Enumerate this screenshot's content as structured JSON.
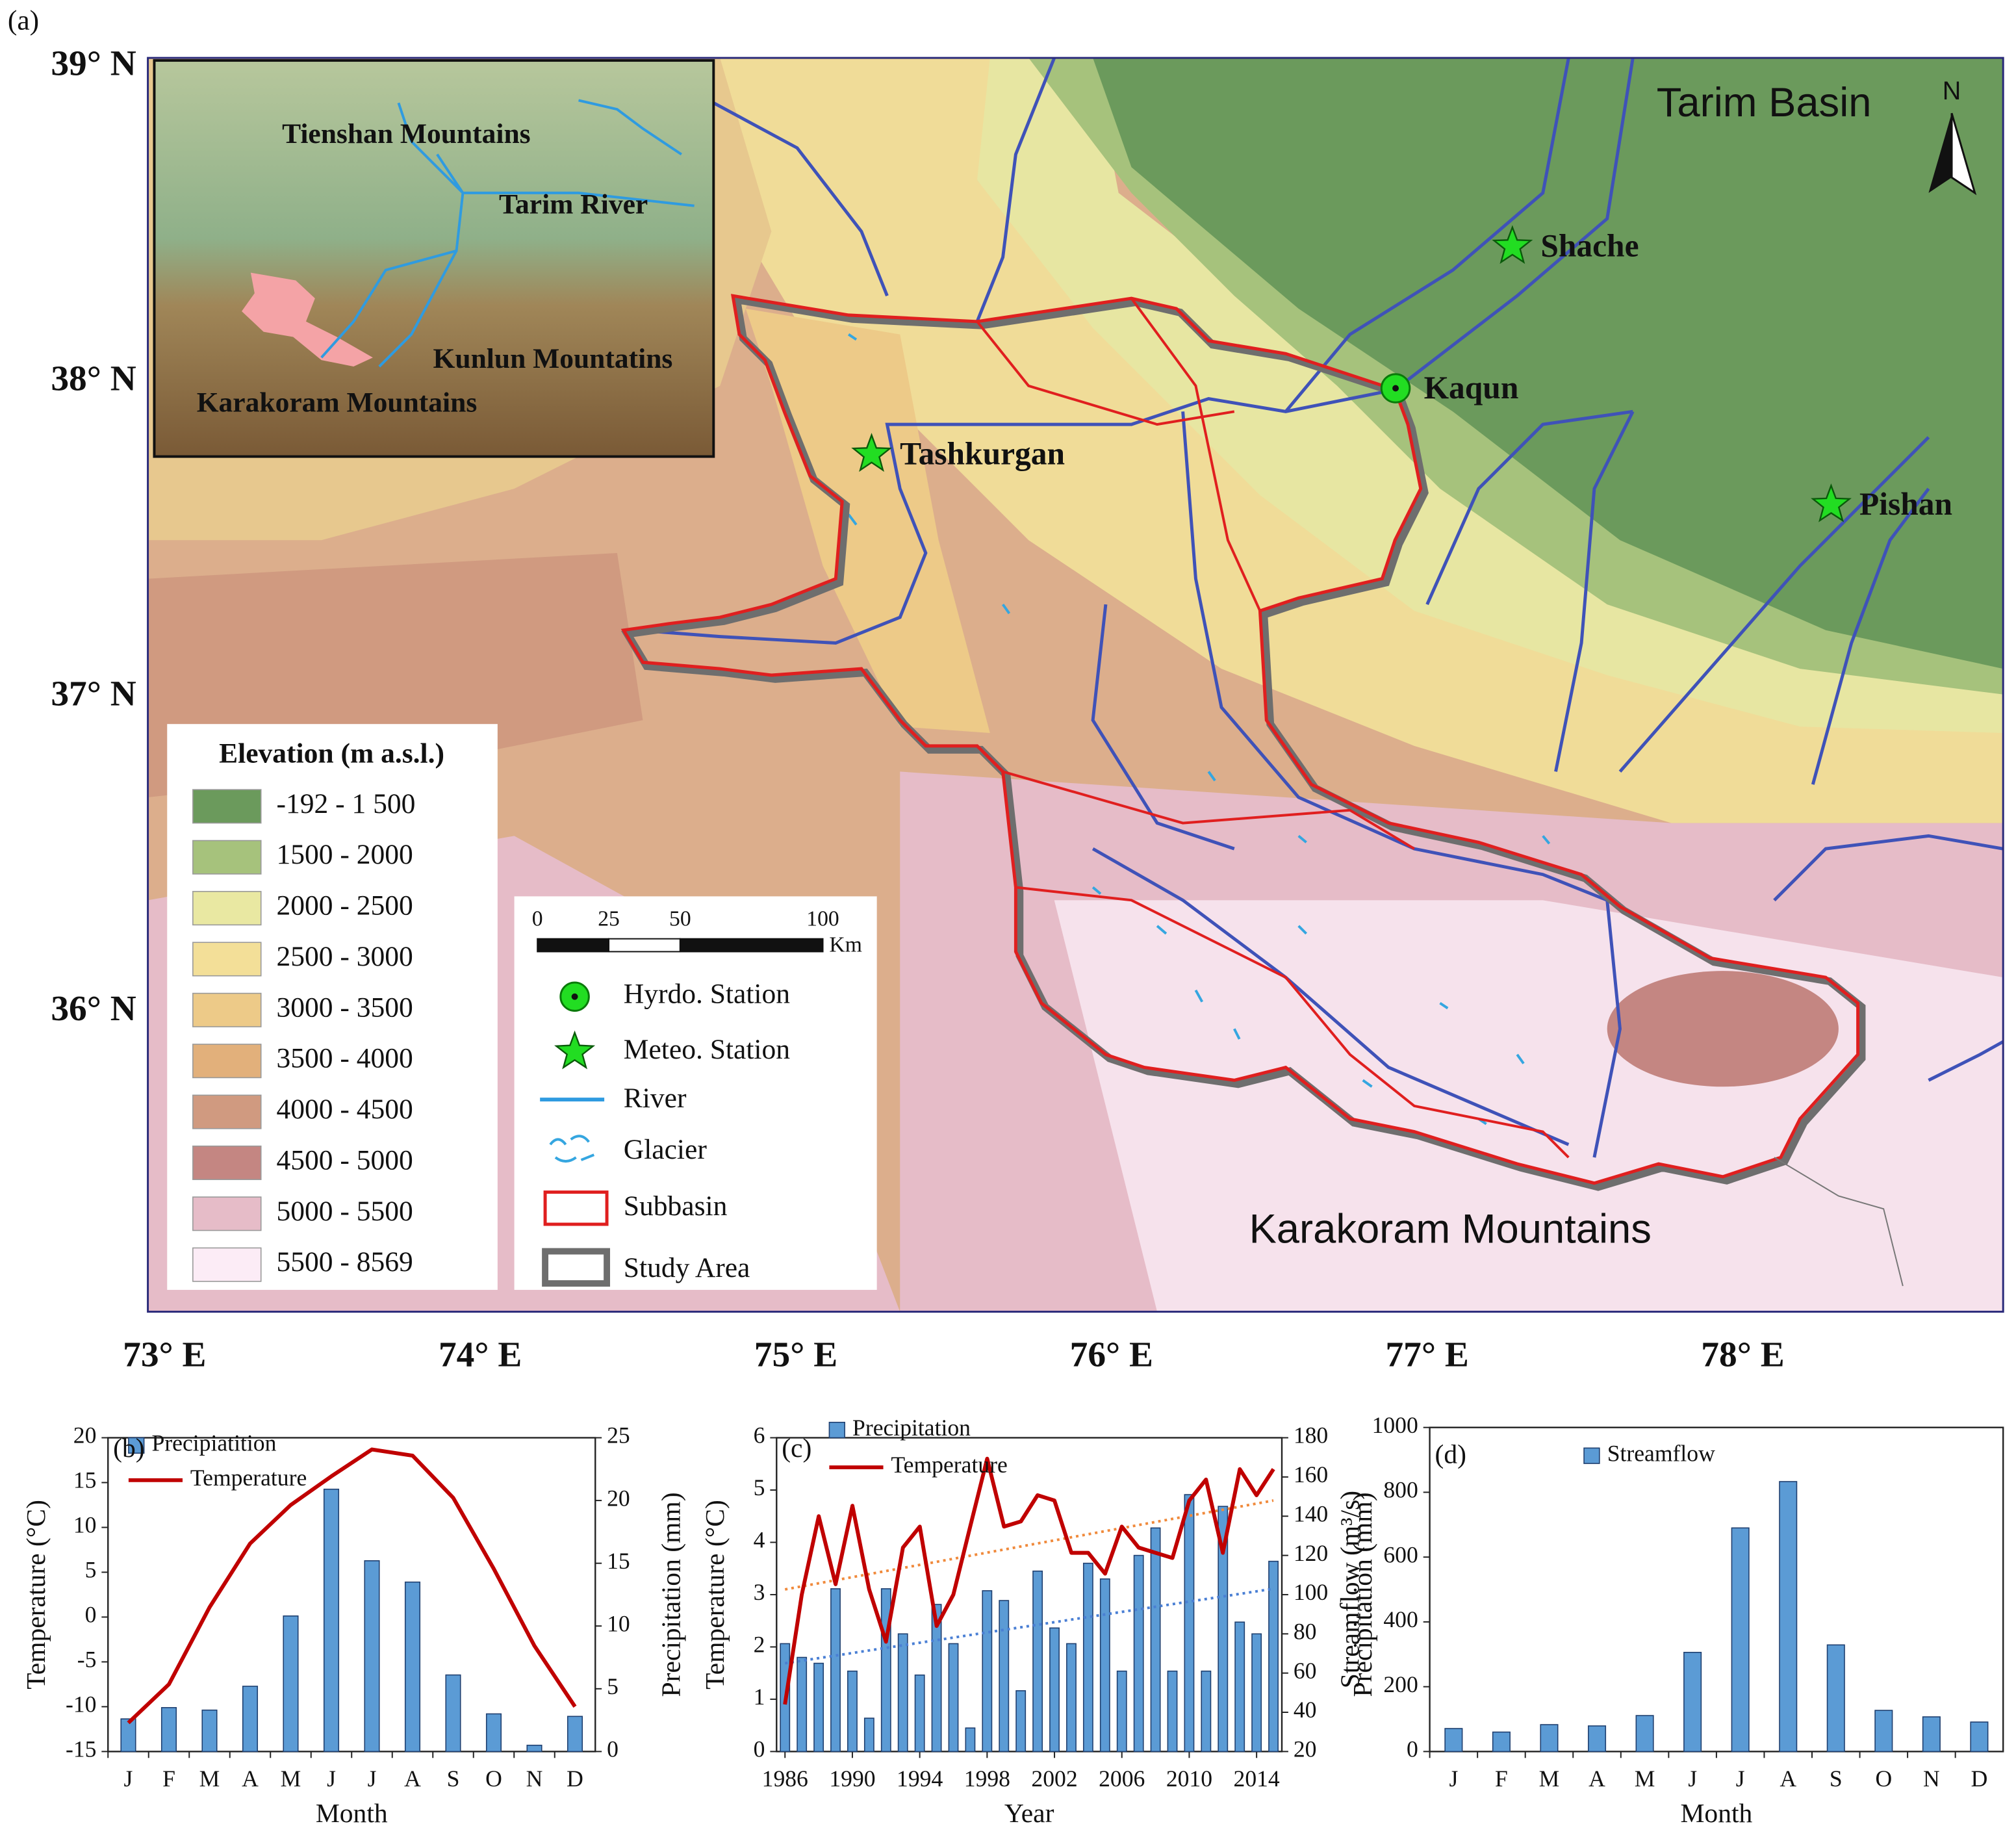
{
  "figure_label": "(a)",
  "map": {
    "lat_ticks": [
      {
        "value": 39,
        "label": "39° N"
      },
      {
        "value": 38,
        "label": "38° N"
      },
      {
        "value": 37,
        "label": "37° N"
      },
      {
        "value": 36,
        "label": "36° N"
      }
    ],
    "lon_ticks": [
      {
        "value": 73,
        "label": "73° E"
      },
      {
        "value": 74,
        "label": "74° E"
      },
      {
        "value": 75,
        "label": "75° E"
      },
      {
        "value": 76,
        "label": "76° E"
      },
      {
        "value": 77,
        "label": "77° E"
      },
      {
        "value": 78,
        "label": "78° E"
      }
    ],
    "region_labels": [
      "Tarim Basin",
      "Karakoram Mountains"
    ],
    "north_label": "N",
    "stations": [
      {
        "name": "Tashkurgan",
        "kind": "meteo",
        "lon": 75.24,
        "lat": 37.77
      },
      {
        "name": "Shache",
        "kind": "meteo",
        "lon": 77.27,
        "lat": 38.43
      },
      {
        "name": "Pishan",
        "kind": "meteo",
        "lon": 78.28,
        "lat": 37.61
      },
      {
        "name": "Kaqun",
        "kind": "hydro",
        "lon": 76.9,
        "lat": 37.98
      }
    ],
    "inset_labels": [
      "Tienshan Mountains",
      "Tarim River",
      "Kunlun Mountatins",
      "Karakoram Mountains"
    ],
    "elevation_legend": {
      "title": "Elevation (m a.s.l.)",
      "classes": [
        {
          "label": "-192 - 1 500",
          "color": "#6b9a5c"
        },
        {
          "label": "1500 - 2000",
          "color": "#a6c27c"
        },
        {
          "label": "2000 - 2500",
          "color": "#e9e8a2"
        },
        {
          "label": "2500 - 3000",
          "color": "#f3df98"
        },
        {
          "label": "3000 - 3500",
          "color": "#edca88"
        },
        {
          "label": "3500 - 4000",
          "color": "#e2b07b"
        },
        {
          "label": "4000 - 4500",
          "color": "#d09a80"
        },
        {
          "label": "4500 - 5000",
          "color": "#c48682"
        },
        {
          "label": "5000 - 5500",
          "color": "#e6bcc8"
        },
        {
          "label": "5500 - 8569",
          "color": "#fcecf6"
        }
      ]
    },
    "scale_bar": {
      "ticks": [
        0,
        25,
        50,
        100
      ],
      "unit": "Km"
    },
    "symbol_legend": [
      "Hyrdo. Station",
      "Meteo. Station",
      "River",
      "Glacier",
      "Subbasin",
      "Study Area"
    ]
  },
  "chart_data": [
    {
      "type": "combo",
      "panel_label": "(b)",
      "categories": [
        "J",
        "F",
        "M",
        "A",
        "M",
        "J",
        "J",
        "A",
        "S",
        "O",
        "N",
        "D"
      ],
      "series": [
        {
          "name": "Precipiatition",
          "type": "bar",
          "axis": "y2",
          "color": "#5b9bd5",
          "values": [
            2.6,
            3.5,
            3.3,
            5.2,
            10.8,
            20.9,
            15.2,
            13.5,
            6.1,
            3.0,
            0.5,
            2.8
          ]
        },
        {
          "name": "Temperature",
          "type": "line",
          "color": "#c00000",
          "values": [
            -11.8,
            -7.5,
            1.1,
            8.2,
            12.5,
            15.7,
            18.7,
            18.0,
            13.3,
            5.4,
            -3.2,
            -10.0
          ]
        }
      ],
      "ylim": [
        -15,
        20
      ],
      "yticks": [
        -15,
        -10,
        -5,
        0,
        5,
        10,
        15,
        20
      ],
      "y2lim": [
        0,
        25
      ],
      "y2ticks": [
        0,
        5,
        10,
        15,
        20,
        25
      ],
      "xlabel": "Month",
      "ylabel": "Temperature (°C)",
      "y2label": "Precipitation (mm)"
    },
    {
      "type": "combo",
      "panel_label": "(c)",
      "x": [
        1986,
        1987,
        1988,
        1989,
        1990,
        1991,
        1992,
        1993,
        1994,
        1995,
        1996,
        1997,
        1998,
        1999,
        2000,
        2001,
        2002,
        2003,
        2004,
        2005,
        2006,
        2007,
        2008,
        2009,
        2010,
        2011,
        2012,
        2013,
        2014,
        2015
      ],
      "series": [
        {
          "name": "Precipitation",
          "type": "bar",
          "axis": "y2",
          "color": "#5b9bd5",
          "values": [
            75,
            68,
            65,
            103,
            61,
            37,
            103,
            80,
            59,
            95,
            75,
            32,
            102,
            97,
            51,
            112,
            83,
            75,
            116,
            108,
            61,
            120,
            134,
            61,
            151,
            61,
            145,
            86,
            80,
            117
          ]
        },
        {
          "name": "Temperature",
          "type": "line",
          "color": "#c00000",
          "values": [
            0.9,
            3.0,
            4.5,
            3.2,
            4.7,
            3.1,
            2.1,
            3.9,
            4.3,
            2.4,
            3.0,
            4.3,
            5.6,
            4.3,
            4.4,
            4.9,
            4.8,
            3.8,
            3.8,
            3.4,
            4.3,
            3.9,
            3.8,
            3.7,
            4.8,
            5.2,
            3.8,
            5.4,
            4.9,
            5.4
          ]
        }
      ],
      "trendlines": [
        {
          "axis": "y",
          "color": "#f08a3c",
          "x": [
            1986,
            2015
          ],
          "values": [
            3.1,
            4.8
          ]
        },
        {
          "axis": "y2",
          "color": "#4a7fd4",
          "x": [
            1986,
            2015
          ],
          "values": [
            65,
            103
          ]
        }
      ],
      "xlim": [
        1985.5,
        2015.5
      ],
      "xticks": [
        1986,
        1990,
        1994,
        1998,
        2002,
        2006,
        2010,
        2014
      ],
      "ylim": [
        0,
        6
      ],
      "yticks": [
        0,
        1,
        2,
        3,
        4,
        5,
        6
      ],
      "y2lim": [
        20,
        180
      ],
      "y2ticks": [
        20,
        40,
        60,
        80,
        100,
        120,
        140,
        160,
        180
      ],
      "xlabel": "Year",
      "ylabel": "Temperature (°C)",
      "y2label": "Precipitation (mm)"
    },
    {
      "type": "bar",
      "panel_label": "(d)",
      "categories": [
        "J",
        "F",
        "M",
        "A",
        "M",
        "J",
        "J",
        "A",
        "S",
        "O",
        "N",
        "D"
      ],
      "series": [
        {
          "name": "Streamflow",
          "type": "bar",
          "color": "#5b9bd5",
          "values": [
            71,
            60,
            83,
            79,
            111,
            306,
            690,
            833,
            329,
            127,
            107,
            91
          ]
        }
      ],
      "ylim": [
        0,
        1000
      ],
      "yticks": [
        0,
        200,
        400,
        600,
        800,
        1000
      ],
      "xlabel": "Month",
      "ylabel": "Streamflow (m³/s)"
    }
  ]
}
